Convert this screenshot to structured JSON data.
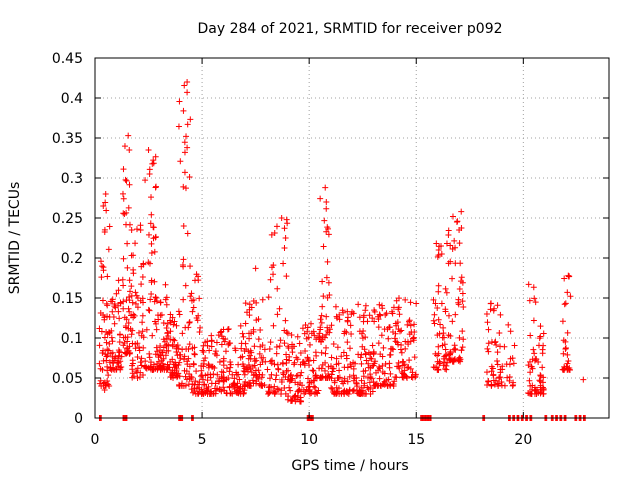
{
  "chart_data": {
    "type": "scatter",
    "title": "Day 284 of 2021, SRMTID for receiver p092",
    "xlabel": "GPS time / hours",
    "ylabel": "SRMTID / TECUs",
    "xlim": [
      0,
      24
    ],
    "ylim": [
      0,
      0.45
    ],
    "grid": true,
    "marker": "+",
    "color": "#ff0000",
    "xticks": [
      0,
      5,
      10,
      15,
      20
    ],
    "yticks": [
      0,
      0.05,
      0.1,
      0.15,
      0.2,
      0.25,
      0.3,
      0.35,
      0.4,
      0.45
    ],
    "xtick_labels": [
      "0",
      "5",
      "10",
      "15",
      "20"
    ],
    "ytick_labels": [
      "0",
      "0.05",
      "0.1",
      "0.15",
      "0.2",
      "0.25",
      "0.3",
      "0.35",
      "0.4",
      "0.45"
    ],
    "series": [
      {
        "name": "SRMTID",
        "seed": 284,
        "clusters": [
          {
            "x0": 0.2,
            "x1": 0.7,
            "yl": 0.04,
            "yh": 0.28,
            "n": 60
          },
          {
            "x0": 0.7,
            "x1": 1.3,
            "yl": 0.06,
            "yh": 0.18,
            "n": 55
          },
          {
            "x0": 1.3,
            "x1": 1.7,
            "yl": 0.08,
            "yh": 0.35,
            "n": 55
          },
          {
            "x0": 1.7,
            "x1": 2.3,
            "yl": 0.05,
            "yh": 0.25,
            "n": 60
          },
          {
            "x0": 2.3,
            "x1": 2.9,
            "yl": 0.06,
            "yh": 0.33,
            "n": 60
          },
          {
            "x0": 2.9,
            "x1": 3.4,
            "yl": 0.06,
            "yh": 0.17,
            "n": 55
          },
          {
            "x0": 3.4,
            "x1": 3.9,
            "yl": 0.05,
            "yh": 0.13,
            "n": 50
          },
          {
            "x0": 3.9,
            "x1": 4.5,
            "yl": 0.04,
            "yh": 0.42,
            "n": 60
          },
          {
            "x0": 4.5,
            "x1": 5.0,
            "yl": 0.03,
            "yh": 0.18,
            "n": 45
          },
          {
            "x0": 5.0,
            "x1": 6.0,
            "yl": 0.03,
            "yh": 0.11,
            "n": 80
          },
          {
            "x0": 6.0,
            "x1": 7.0,
            "yl": 0.03,
            "yh": 0.12,
            "n": 80
          },
          {
            "x0": 7.0,
            "x1": 8.0,
            "yl": 0.04,
            "yh": 0.15,
            "n": 80
          },
          {
            "x0": 8.0,
            "x1": 9.0,
            "yl": 0.03,
            "yh": 0.25,
            "n": 70
          },
          {
            "x0": 9.0,
            "x1": 9.7,
            "yl": 0.02,
            "yh": 0.11,
            "n": 60
          },
          {
            "x0": 9.7,
            "x1": 10.5,
            "yl": 0.03,
            "yh": 0.12,
            "n": 60
          },
          {
            "x0": 10.5,
            "x1": 11.0,
            "yl": 0.05,
            "yh": 0.29,
            "n": 55
          },
          {
            "x0": 11.0,
            "x1": 12.0,
            "yl": 0.03,
            "yh": 0.14,
            "n": 80
          },
          {
            "x0": 12.0,
            "x1": 13.0,
            "yl": 0.03,
            "yh": 0.15,
            "n": 80
          },
          {
            "x0": 13.0,
            "x1": 14.0,
            "yl": 0.04,
            "yh": 0.15,
            "n": 80
          },
          {
            "x0": 14.0,
            "x1": 15.0,
            "yl": 0.05,
            "yh": 0.15,
            "n": 70
          },
          {
            "x0": 15.8,
            "x1": 16.5,
            "yl": 0.06,
            "yh": 0.22,
            "n": 55
          },
          {
            "x0": 16.5,
            "x1": 17.2,
            "yl": 0.07,
            "yh": 0.26,
            "n": 60
          },
          {
            "x0": 18.3,
            "x1": 18.9,
            "yl": 0.04,
            "yh": 0.15,
            "n": 40
          },
          {
            "x0": 18.9,
            "x1": 19.6,
            "yl": 0.04,
            "yh": 0.14,
            "n": 25
          },
          {
            "x0": 20.2,
            "x1": 20.6,
            "yl": 0.03,
            "yh": 0.17,
            "n": 30
          },
          {
            "x0": 20.6,
            "x1": 21.0,
            "yl": 0.03,
            "yh": 0.12,
            "n": 30
          },
          {
            "x0": 21.8,
            "x1": 22.2,
            "yl": 0.06,
            "yh": 0.18,
            "n": 30
          }
        ],
        "spikes": [
          {
            "x": 0.5,
            "y": 0.28
          },
          {
            "x": 1.55,
            "y": 0.353
          },
          {
            "x": 1.6,
            "y": 0.335
          },
          {
            "x": 2.5,
            "y": 0.335
          },
          {
            "x": 2.55,
            "y": 0.305
          },
          {
            "x": 4.3,
            "y": 0.42
          },
          {
            "x": 4.3,
            "y": 0.407
          },
          {
            "x": 4.25,
            "y": 0.352
          },
          {
            "x": 4.3,
            "y": 0.338
          },
          {
            "x": 4.2,
            "y": 0.307
          },
          {
            "x": 8.95,
            "y": 0.248
          },
          {
            "x": 8.9,
            "y": 0.225
          },
          {
            "x": 7.5,
            "y": 0.187
          },
          {
            "x": 10.75,
            "y": 0.288
          },
          {
            "x": 10.8,
            "y": 0.27
          },
          {
            "x": 17.1,
            "y": 0.258
          },
          {
            "x": 17.0,
            "y": 0.235
          },
          {
            "x": 16.9,
            "y": 0.245
          },
          {
            "x": 16.05,
            "y": 0.21
          },
          {
            "x": 20.25,
            "y": 0.167
          },
          {
            "x": 22.1,
            "y": 0.178
          },
          {
            "x": 22.8,
            "y": 0.048
          },
          {
            "x": 0.45,
            "y": 0.035
          }
        ],
        "zero_points": [
          0.25,
          1.35,
          1.45,
          3.95,
          4.05,
          4.55,
          9.95,
          10.05,
          10.15,
          15.25,
          15.35,
          15.45,
          15.55,
          15.65,
          18.15,
          19.35,
          19.55,
          19.75,
          19.95,
          20.15,
          20.35,
          21.05,
          21.35,
          21.55,
          21.75,
          21.95,
          22.45,
          22.65,
          22.85
        ]
      }
    ]
  }
}
